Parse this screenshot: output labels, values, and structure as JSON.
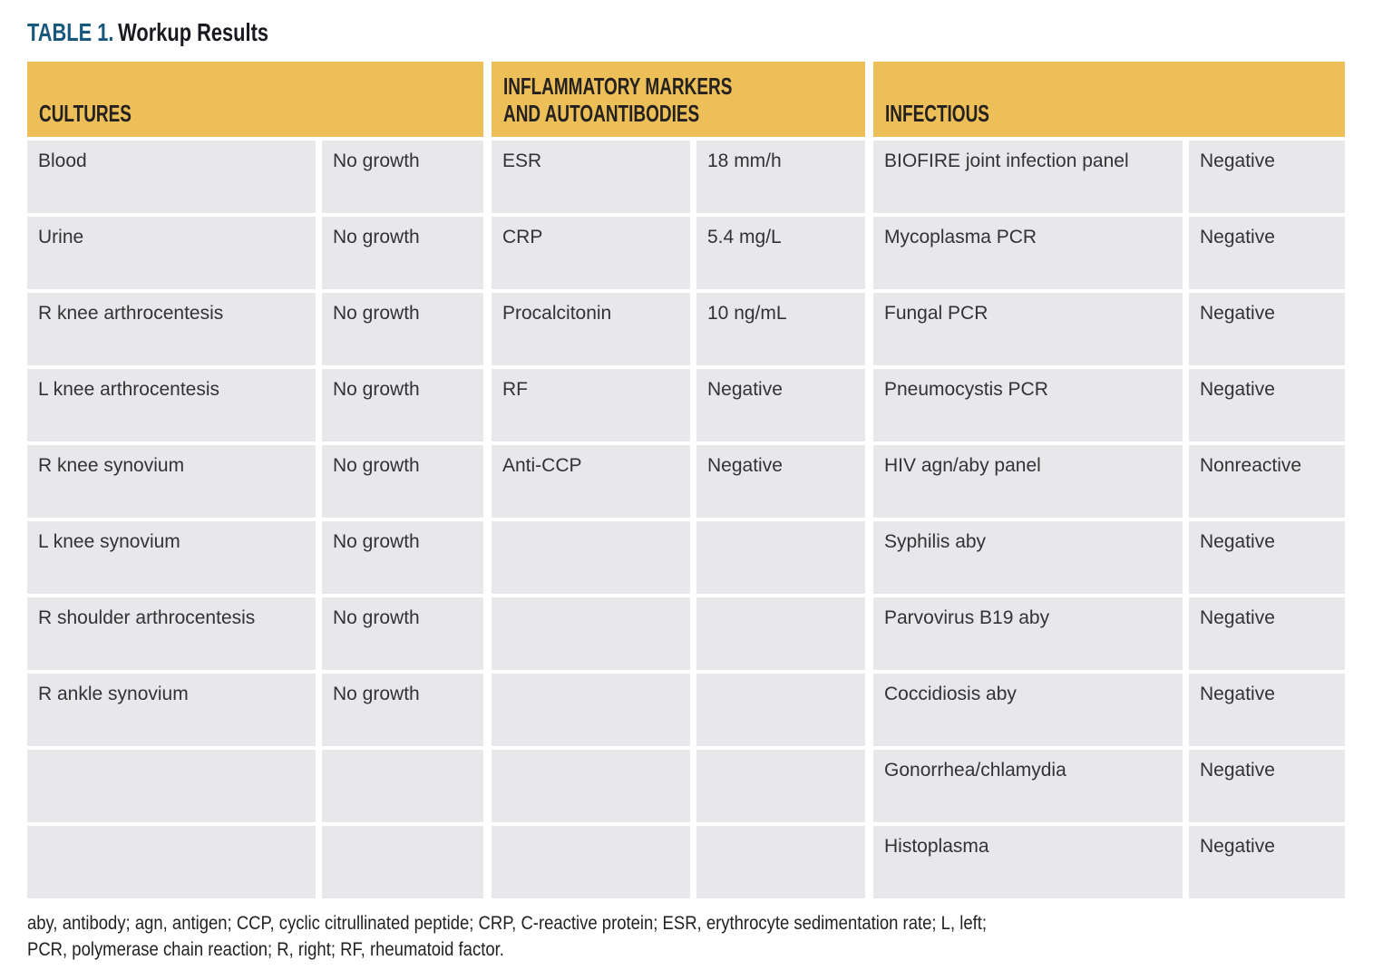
{
  "title": {
    "label": "TABLE 1.",
    "name": "Workup Results"
  },
  "colors": {
    "header_gold": "#ECBF58",
    "cell_gray": "#E8E8EA",
    "title_label_blue": "#17587C",
    "title_dark": "#191920",
    "header_text": "#252120",
    "body_text": "#333335"
  },
  "table": {
    "groups": [
      {
        "header": "CULTURES",
        "rows": [
          {
            "test": "Blood",
            "result": "No growth"
          },
          {
            "test": "Urine",
            "result": "No growth"
          },
          {
            "test": "R knee arthrocentesis",
            "result": "No growth"
          },
          {
            "test": "L knee arthrocentesis",
            "result": "No growth"
          },
          {
            "test": "R knee synovium",
            "result": "No growth"
          },
          {
            "test": "L knee synovium",
            "result": "No growth"
          },
          {
            "test": "R shoulder arthrocentesis",
            "result": "No growth"
          },
          {
            "test": "R ankle synovium",
            "result": "No growth"
          },
          {
            "test": "",
            "result": ""
          },
          {
            "test": "",
            "result": ""
          }
        ]
      },
      {
        "header": "INFLAMMATORY MARKERS AND AUTOANTIBODIES",
        "rows": [
          {
            "test": "ESR",
            "result": "18 mm/h"
          },
          {
            "test": "CRP",
            "result": "5.4 mg/L"
          },
          {
            "test": "Procalcitonin",
            "result": "10 ng/mL"
          },
          {
            "test": "RF",
            "result": "Negative"
          },
          {
            "test": "Anti-CCP",
            "result": "Negative"
          },
          {
            "test": "",
            "result": ""
          },
          {
            "test": "",
            "result": ""
          },
          {
            "test": "",
            "result": ""
          },
          {
            "test": "",
            "result": ""
          },
          {
            "test": "",
            "result": ""
          }
        ]
      },
      {
        "header": "INFECTIOUS",
        "rows": [
          {
            "test": "BIOFIRE joint infection panel",
            "result": "Negative"
          },
          {
            "test": "Mycoplasma PCR",
            "result": "Negative"
          },
          {
            "test": "Fungal PCR",
            "result": "Negative"
          },
          {
            "test": "Pneumocystis PCR",
            "result": "Negative"
          },
          {
            "test": "HIV agn/aby panel",
            "result": "Nonreactive"
          },
          {
            "test": "Syphilis aby",
            "result": "Negative"
          },
          {
            "test": "Parvovirus B19 aby",
            "result": "Negative"
          },
          {
            "test": "Coccidiosis aby",
            "result": "Negative"
          },
          {
            "test": "Gonorrhea/chlamydia",
            "result": "Negative"
          },
          {
            "test": "Histoplasma",
            "result": "Negative"
          }
        ]
      }
    ]
  },
  "footnote": {
    "line1": "aby, antibody; agn, antigen; CCP, cyclic citrullinated peptide; CRP, C-reactive protein; ESR, erythrocyte sedimentation rate; L, left;",
    "line2": "PCR, polymerase chain reaction; R, right; RF, rheumatoid factor."
  }
}
